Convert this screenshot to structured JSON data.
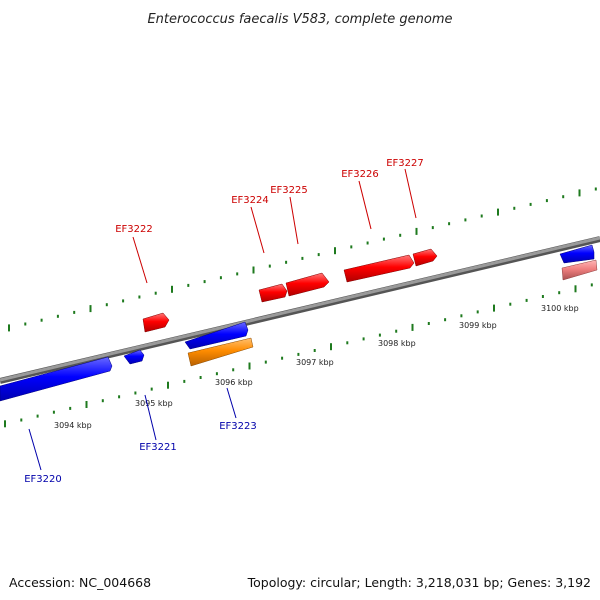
{
  "title": "Enterococcus faecalis V583, complete genome",
  "footer": {
    "accession": "Accession: NC_004668",
    "summary": "Topology: circular; Length: 3,218,031 bp; Genes: 3,192"
  },
  "colors": {
    "forward_gene": "#ff0000",
    "reverse_gene": "#0000ff",
    "rna_gene": "#ff8c00",
    "pseudo_gene": "#f08080",
    "forward_label": "#cc0000",
    "reverse_label": "#0000aa",
    "ticks": "#1e7a1e",
    "backbone": "#888888"
  },
  "kbp_labels": [
    "3094 kbp",
    "3095 kbp",
    "3096 kbp",
    "3097 kbp",
    "3098 kbp",
    "3099 kbp",
    "3100 kbp"
  ],
  "genes": [
    {
      "id": "EF3220",
      "strand": "reverse"
    },
    {
      "id": "EF3221",
      "strand": "reverse"
    },
    {
      "id": "EF3222",
      "strand": "forward"
    },
    {
      "id": "EF3223",
      "strand": "reverse"
    },
    {
      "id": "EF3224",
      "strand": "forward"
    },
    {
      "id": "EF3225",
      "strand": "forward"
    },
    {
      "id": "EF3226",
      "strand": "forward"
    },
    {
      "id": "EF3227",
      "strand": "forward"
    }
  ]
}
